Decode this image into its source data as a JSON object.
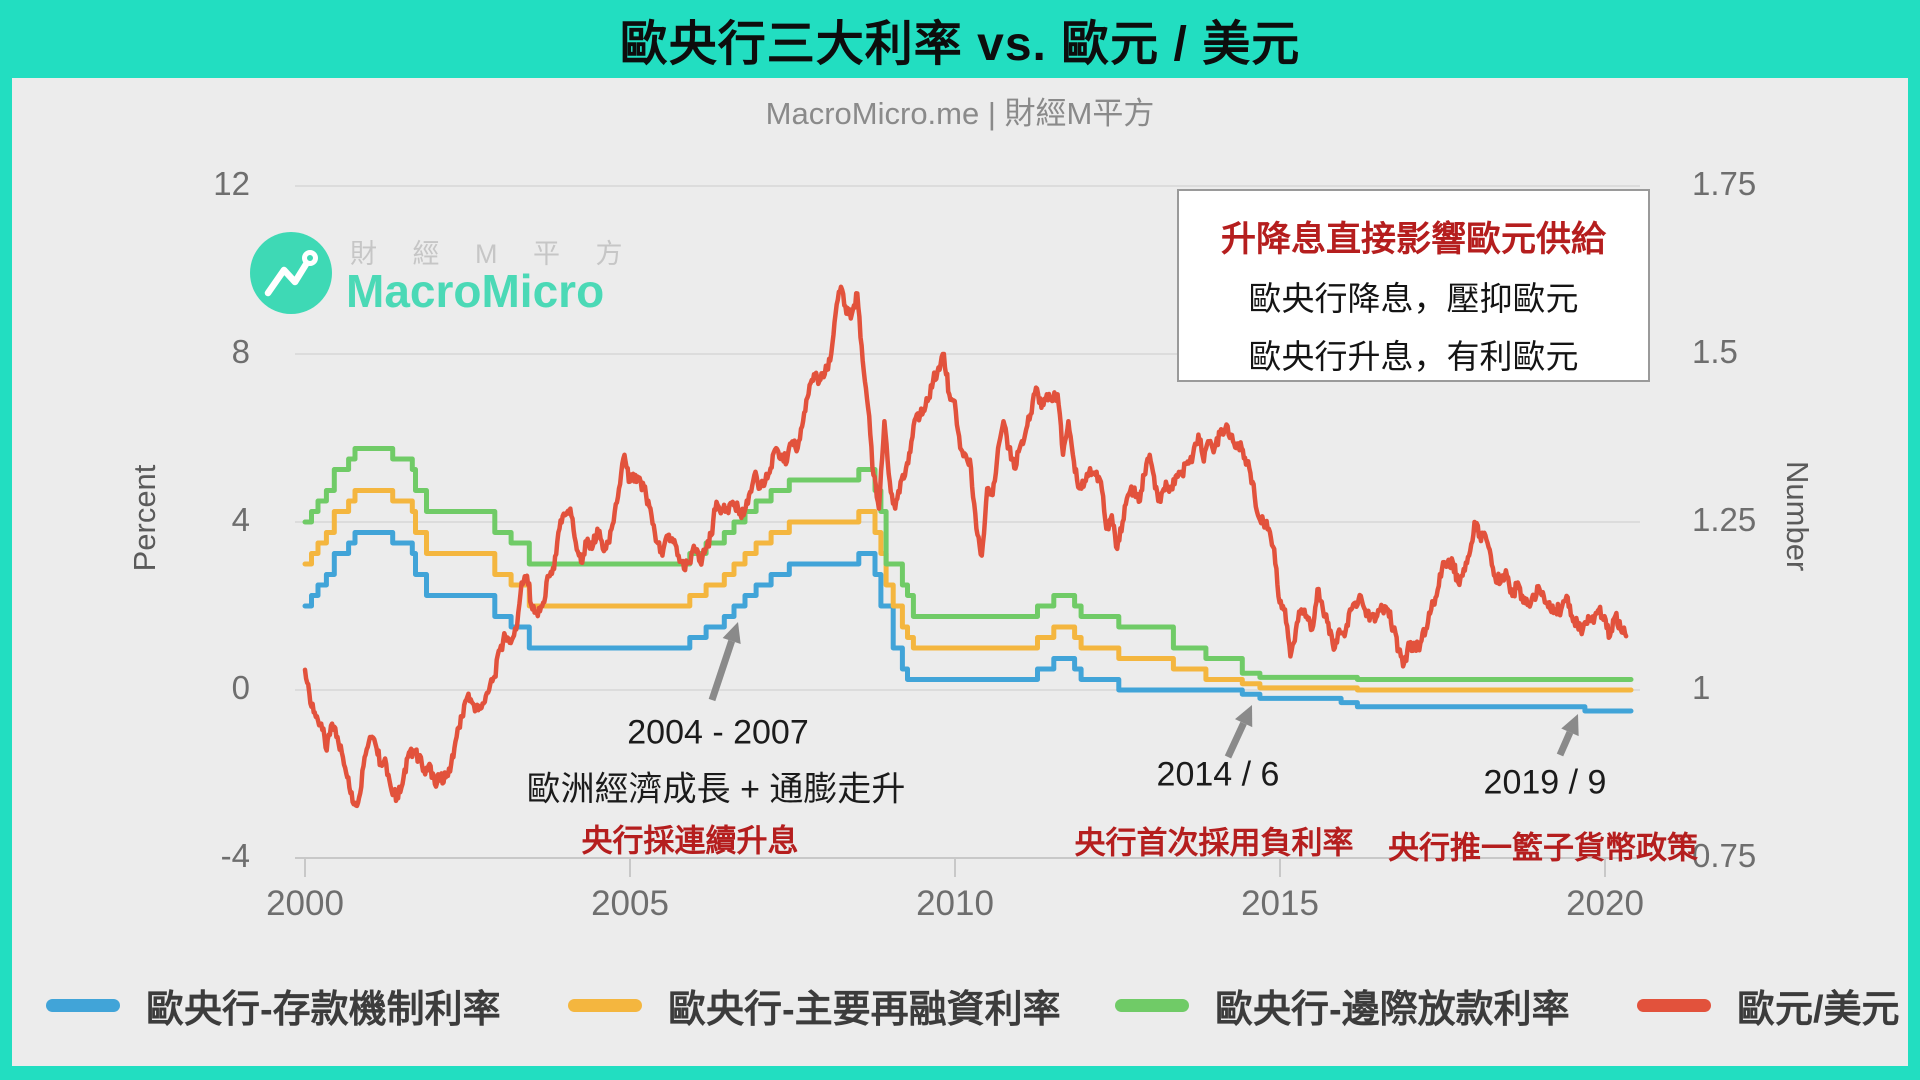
{
  "title": "歐央行三大利率 vs. 歐元 / 美元",
  "subtitle": "MacroMicro.me | 財經M平方",
  "watermark": {
    "line1": "財 經 M 平 方",
    "line2": "MacroMicro"
  },
  "colors": {
    "frame": "#22dec1",
    "panel": "#ececec",
    "deposit": "#41a4d8",
    "refi": "#f4b63f",
    "marginal": "#70cb67",
    "eurusd": "#e2523c",
    "red_text": "#b51e1e",
    "gridline": "#dcdcdc",
    "axis_line": "#c8c8c8",
    "arrow": "#8a8a8a"
  },
  "note_box": {
    "title": "升降息直接影響歐元供給",
    "line1": "歐央行降息，壓抑歐元",
    "line2": "歐央行升息，有利歐元"
  },
  "annotations": [
    {
      "line1": "2004 - 2007",
      "line2": "歐洲經濟成長 + 通膨走升",
      "note": "央行採連續升息"
    },
    {
      "line1": "2014 / 6",
      "note": "央行首次採用負利率"
    },
    {
      "line1": "2019 / 9",
      "note": "央行推一籃子貨幣政策"
    }
  ],
  "legend": [
    {
      "label": "歐央行-存款機制利率",
      "color": "deposit"
    },
    {
      "label": "歐央行-主要再融資利率",
      "color": "refi"
    },
    {
      "label": "歐央行-邊際放款利率",
      "color": "marginal"
    },
    {
      "label": "歐元/美元",
      "color": "eurusd"
    }
  ],
  "chart_data": {
    "type": "line",
    "title": "歐央行三大利率 vs. 歐元 / 美元",
    "x": {
      "range": [
        2000,
        2020.4
      ],
      "tick_labels": [
        "2000",
        "2005",
        "2010",
        "2015",
        "2020"
      ]
    },
    "y_left": {
      "label": "Percent",
      "range": [
        -4,
        12
      ],
      "tick_labels": [
        "12",
        "8",
        "4",
        "0",
        "-4"
      ]
    },
    "y_right": {
      "label": "Number",
      "range": [
        0.75,
        1.75
      ],
      "tick_labels": [
        "1.75",
        "1.5",
        "1.25",
        "1",
        "0.75"
      ]
    },
    "grid": "horizontal-only",
    "legend_position": "bottom",
    "series": [
      {
        "name": "歐央行-存款機制利率",
        "axis": "left",
        "type": "step",
        "color": "deposit",
        "points": [
          [
            2000,
            2
          ],
          [
            2000.1,
            2.25
          ],
          [
            2000.2,
            2.5
          ],
          [
            2000.33,
            2.75
          ],
          [
            2000.45,
            3.25
          ],
          [
            2000.67,
            3.5
          ],
          [
            2000.77,
            3.75
          ],
          [
            2001.35,
            3.5
          ],
          [
            2001.65,
            3.25
          ],
          [
            2001.7,
            2.75
          ],
          [
            2001.87,
            2.25
          ],
          [
            2002.92,
            1.75
          ],
          [
            2003.17,
            1.5
          ],
          [
            2003.45,
            1
          ],
          [
            2005.92,
            1.25
          ],
          [
            2006.17,
            1.5
          ],
          [
            2006.45,
            1.75
          ],
          [
            2006.6,
            2
          ],
          [
            2006.77,
            2.25
          ],
          [
            2006.94,
            2.5
          ],
          [
            2007.17,
            2.75
          ],
          [
            2007.45,
            3
          ],
          [
            2008.52,
            3.25
          ],
          [
            2008.77,
            2.75
          ],
          [
            2008.86,
            2
          ],
          [
            2009.05,
            1
          ],
          [
            2009.19,
            0.5
          ],
          [
            2009.27,
            0.25
          ],
          [
            2011.27,
            0.5
          ],
          [
            2011.52,
            0.75
          ],
          [
            2011.84,
            0.5
          ],
          [
            2011.94,
            0.25
          ],
          [
            2012.52,
            0
          ],
          [
            2014.42,
            -0.1
          ],
          [
            2014.69,
            -0.2
          ],
          [
            2015.94,
            -0.3
          ],
          [
            2016.19,
            -0.4
          ],
          [
            2019.69,
            -0.5
          ],
          [
            2020.4,
            -0.5
          ]
        ]
      },
      {
        "name": "歐央行-主要再融資利率",
        "axis": "left",
        "type": "step",
        "color": "refi",
        "points": [
          [
            2000,
            3
          ],
          [
            2000.1,
            3.25
          ],
          [
            2000.2,
            3.5
          ],
          [
            2000.33,
            3.75
          ],
          [
            2000.45,
            4.25
          ],
          [
            2000.67,
            4.5
          ],
          [
            2000.77,
            4.75
          ],
          [
            2001.35,
            4.5
          ],
          [
            2001.65,
            4.25
          ],
          [
            2001.7,
            3.75
          ],
          [
            2001.87,
            3.25
          ],
          [
            2002.92,
            2.75
          ],
          [
            2003.17,
            2.5
          ],
          [
            2003.45,
            2
          ],
          [
            2005.92,
            2.25
          ],
          [
            2006.17,
            2.5
          ],
          [
            2006.45,
            2.75
          ],
          [
            2006.6,
            3
          ],
          [
            2006.77,
            3.25
          ],
          [
            2006.94,
            3.5
          ],
          [
            2007.17,
            3.75
          ],
          [
            2007.45,
            4
          ],
          [
            2008.52,
            4.25
          ],
          [
            2008.77,
            3.75
          ],
          [
            2008.86,
            3.25
          ],
          [
            2008.94,
            2.5
          ],
          [
            2009.05,
            2
          ],
          [
            2009.19,
            1.5
          ],
          [
            2009.27,
            1.25
          ],
          [
            2009.36,
            1
          ],
          [
            2011.27,
            1.25
          ],
          [
            2011.52,
            1.5
          ],
          [
            2011.84,
            1.25
          ],
          [
            2011.94,
            1
          ],
          [
            2012.52,
            0.75
          ],
          [
            2013.36,
            0.5
          ],
          [
            2013.86,
            0.25
          ],
          [
            2014.42,
            0.15
          ],
          [
            2014.69,
            0.05
          ],
          [
            2016.19,
            0
          ],
          [
            2020.4,
            0
          ]
        ]
      },
      {
        "name": "歐央行-邊際放款利率",
        "axis": "left",
        "type": "step",
        "color": "marginal",
        "points": [
          [
            2000,
            4
          ],
          [
            2000.1,
            4.25
          ],
          [
            2000.2,
            4.5
          ],
          [
            2000.33,
            4.75
          ],
          [
            2000.45,
            5.25
          ],
          [
            2000.67,
            5.5
          ],
          [
            2000.77,
            5.75
          ],
          [
            2001.35,
            5.5
          ],
          [
            2001.65,
            5.25
          ],
          [
            2001.7,
            4.75
          ],
          [
            2001.87,
            4.25
          ],
          [
            2002.92,
            3.75
          ],
          [
            2003.17,
            3.5
          ],
          [
            2003.45,
            3
          ],
          [
            2005.92,
            3.25
          ],
          [
            2006.17,
            3.5
          ],
          [
            2006.45,
            3.75
          ],
          [
            2006.6,
            4
          ],
          [
            2006.77,
            4.25
          ],
          [
            2006.94,
            4.5
          ],
          [
            2007.17,
            4.75
          ],
          [
            2007.45,
            5
          ],
          [
            2008.52,
            5.25
          ],
          [
            2008.77,
            4.75
          ],
          [
            2008.86,
            4.25
          ],
          [
            2008.94,
            3
          ],
          [
            2009.19,
            2.5
          ],
          [
            2009.27,
            2.25
          ],
          [
            2009.36,
            1.75
          ],
          [
            2011.27,
            2
          ],
          [
            2011.52,
            2.25
          ],
          [
            2011.84,
            2
          ],
          [
            2011.94,
            1.75
          ],
          [
            2012.52,
            1.5
          ],
          [
            2013.36,
            1
          ],
          [
            2013.86,
            0.75
          ],
          [
            2014.42,
            0.4
          ],
          [
            2014.69,
            0.3
          ],
          [
            2016.19,
            0.25
          ],
          [
            2020.4,
            0.25
          ]
        ]
      },
      {
        "name": "歐元/美元",
        "axis": "right",
        "type": "line",
        "color": "eurusd",
        "x_start": 2000,
        "x_step": 0.0833,
        "values": [
          1.03,
          0.98,
          0.96,
          0.95,
          0.91,
          0.95,
          0.93,
          0.9,
          0.87,
          0.83,
          0.84,
          0.9,
          0.93,
          0.92,
          0.89,
          0.89,
          0.85,
          0.84,
          0.86,
          0.9,
          0.91,
          0.9,
          0.88,
          0.89,
          0.86,
          0.87,
          0.87,
          0.89,
          0.93,
          0.96,
          0.99,
          0.98,
          0.97,
          0.98,
          1.0,
          1.02,
          1.06,
          1.08,
          1.07,
          1.09,
          1.16,
          1.17,
          1.12,
          1.11,
          1.13,
          1.17,
          1.18,
          1.24,
          1.26,
          1.27,
          1.22,
          1.19,
          1.22,
          1.21,
          1.24,
          1.21,
          1.22,
          1.25,
          1.3,
          1.35,
          1.31,
          1.32,
          1.31,
          1.29,
          1.26,
          1.22,
          1.2,
          1.23,
          1.22,
          1.2,
          1.18,
          1.19,
          1.21,
          1.19,
          1.21,
          1.23,
          1.28,
          1.27,
          1.27,
          1.28,
          1.27,
          1.26,
          1.29,
          1.32,
          1.3,
          1.31,
          1.33,
          1.36,
          1.35,
          1.34,
          1.37,
          1.36,
          1.4,
          1.44,
          1.47,
          1.46,
          1.47,
          1.49,
          1.56,
          1.6,
          1.56,
          1.56,
          1.59,
          1.49,
          1.42,
          1.32,
          1.27,
          1.4,
          1.31,
          1.27,
          1.31,
          1.33,
          1.37,
          1.41,
          1.41,
          1.43,
          1.46,
          1.48,
          1.5,
          1.44,
          1.43,
          1.36,
          1.35,
          1.33,
          1.24,
          1.2,
          1.3,
          1.29,
          1.36,
          1.4,
          1.36,
          1.33,
          1.36,
          1.38,
          1.41,
          1.45,
          1.42,
          1.44,
          1.43,
          1.44,
          1.35,
          1.4,
          1.34,
          1.3,
          1.31,
          1.33,
          1.32,
          1.31,
          1.24,
          1.26,
          1.21,
          1.25,
          1.29,
          1.3,
          1.28,
          1.32,
          1.35,
          1.3,
          1.28,
          1.31,
          1.3,
          1.32,
          1.32,
          1.34,
          1.35,
          1.38,
          1.34,
          1.37,
          1.36,
          1.38,
          1.39,
          1.38,
          1.36,
          1.36,
          1.34,
          1.31,
          1.26,
          1.25,
          1.24,
          1.21,
          1.13,
          1.12,
          1.05,
          1.09,
          1.12,
          1.11,
          1.09,
          1.15,
          1.12,
          1.1,
          1.06,
          1.09,
          1.08,
          1.12,
          1.13,
          1.14,
          1.11,
          1.11,
          1.11,
          1.12,
          1.12,
          1.09,
          1.06,
          1.04,
          1.07,
          1.06,
          1.07,
          1.09,
          1.12,
          1.14,
          1.18,
          1.19,
          1.19,
          1.16,
          1.18,
          1.2,
          1.25,
          1.23,
          1.23,
          1.2,
          1.16,
          1.17,
          1.17,
          1.14,
          1.16,
          1.13,
          1.13,
          1.14,
          1.15,
          1.13,
          1.12,
          1.12,
          1.12,
          1.14,
          1.11,
          1.1,
          1.09,
          1.11,
          1.1,
          1.12,
          1.11,
          1.08,
          1.11,
          1.09,
          1.08
        ]
      }
    ]
  }
}
